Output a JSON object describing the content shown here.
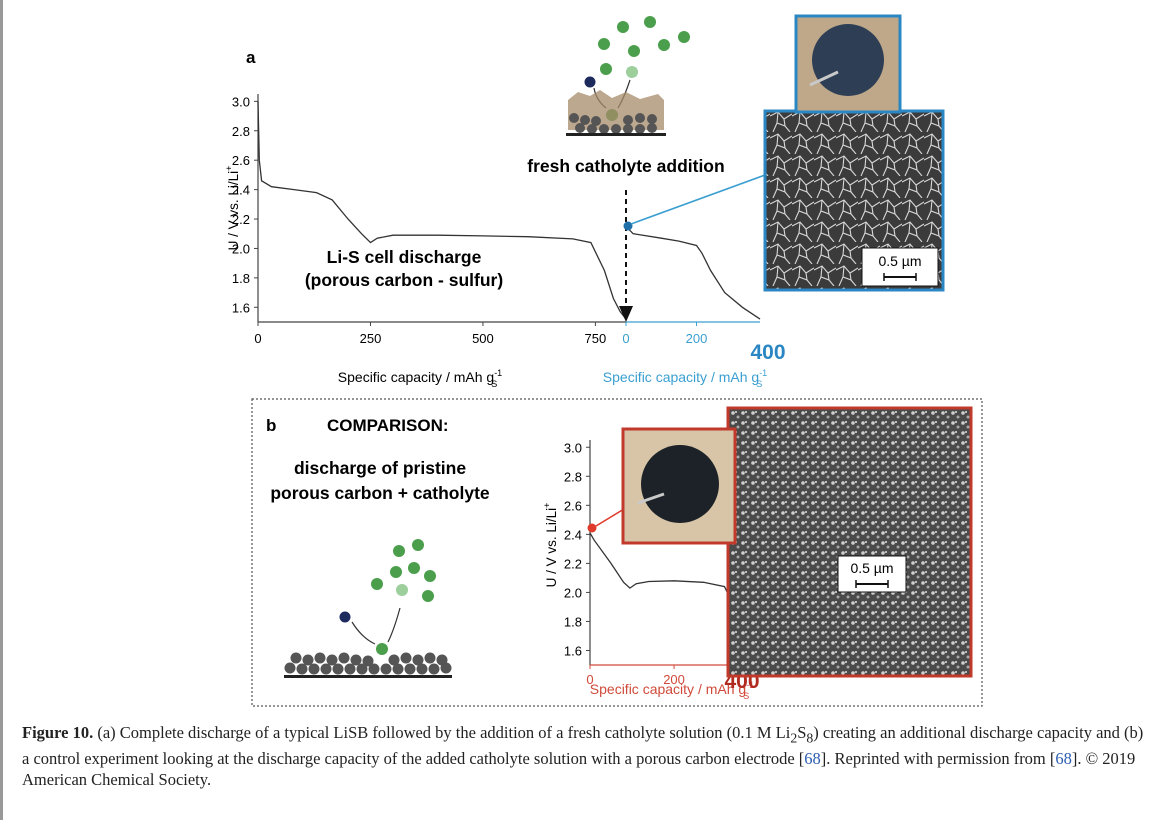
{
  "panel_a": {
    "label": "a",
    "ylabel": "U / V vs. Li/Li",
    "ylabel_sup": "+",
    "yticks": [
      "3.0",
      "2.8",
      "2.6",
      "2.4",
      "2.2",
      "2.0",
      "1.8",
      "1.6"
    ],
    "xticks_left": [
      "0",
      "250",
      "500",
      "750"
    ],
    "xticks_right": [
      "0",
      "200"
    ],
    "x_end_label": "400",
    "xlabel_left": "Specific capacity / mAh g",
    "xlabel_right": "Specific capacity / mAh g",
    "unit_sup": "-1",
    "unit_sub": "S",
    "annotation_line1": "Li-S cell discharge",
    "annotation_line2": "(porous carbon - sulfur)",
    "addition_label": "fresh catholyte addition",
    "scale_bar": "0.5 µm",
    "colors": {
      "right_axis": "#3a9fd0",
      "inset_border": "#2b87c3",
      "bold_end": "#2b87c3",
      "curve": "#333333"
    }
  },
  "panel_b": {
    "label": "b",
    "title": "COMPARISON:",
    "subtitle_line1": "discharge of pristine",
    "subtitle_line2": "porous carbon + catholyte",
    "ylabel": "U / V vs. Li/Li",
    "ylabel_sup": "+",
    "yticks": [
      "3.0",
      "2.8",
      "2.6",
      "2.4",
      "2.2",
      "2.0",
      "1.8",
      "1.6"
    ],
    "xticks": [
      "0",
      "200"
    ],
    "x_end_label": "400",
    "xlabel": "Specific capacity / mAh g",
    "unit_sup": "-1",
    "unit_sub": "S",
    "scale_bar": "0.5 µm",
    "colors": {
      "x_axis": "#d04a3a",
      "inset_border": "#c0392b",
      "bold_end": "#b02a1f",
      "marker": "#e03a2a"
    }
  },
  "caption": {
    "fig_label": "Figure 10.",
    "t1": " (a) Complete discharge of a typical LiSB followed by the addition of a fresh catholyte solution (0.1 M Li",
    "sub1": "2",
    "t2": "S",
    "sub2": "8",
    "t3": ") creating an additional discharge capacity and (b) a control experiment looking at the discharge capacity of the added catholyte solution with a porous carbon electrode [",
    "ref1": "68",
    "t4": "]. Reprinted with permission from [",
    "ref2": "68",
    "t5": "]. © 2019 American Chemical Society."
  },
  "chart_data": [
    {
      "type": "line",
      "panel": "a",
      "ylabel": "U / V vs. Li/Li+",
      "xlabel": "Specific capacity / mAh gS-1",
      "ylim": [
        1.5,
        3.05
      ],
      "xlim": [
        0,
        1195
      ],
      "series": [
        {
          "values": [
            [
              0,
              3.0
            ],
            [
              3,
              2.6
            ],
            [
              8,
              2.46
            ],
            [
              30,
              2.42
            ],
            [
              80,
              2.4
            ],
            [
              130,
              2.38
            ],
            [
              165,
              2.33
            ],
            [
              200,
              2.2
            ],
            [
              230,
              2.1
            ],
            [
              250,
              2.04
            ],
            [
              265,
              2.07
            ],
            [
              300,
              2.09
            ],
            [
              400,
              2.09
            ],
            [
              500,
              2.085
            ],
            [
              600,
              2.08
            ],
            [
              700,
              2.065
            ],
            [
              740,
              2.04
            ],
            [
              770,
              1.85
            ],
            [
              790,
              1.66
            ],
            [
              805,
              1.57
            ],
            [
              818,
              1.52
            ]
          ]
        },
        {
          "values": [
            [
              0,
              2.15
            ],
            [
              20,
              2.1
            ],
            [
              100,
              2.07
            ],
            [
              150,
              2.05
            ],
            [
              200,
              2.02
            ],
            [
              215,
              1.97
            ],
            [
              240,
              1.85
            ],
            [
              280,
              1.7
            ],
            [
              330,
              1.6
            ],
            [
              380,
              1.52
            ]
          ]
        }
      ]
    },
    {
      "type": "line",
      "panel": "b",
      "ylabel": "U / V vs. Li/Li+",
      "xlabel": "Specific capacity / mAh gS-1",
      "ylim": [
        1.5,
        3.05
      ],
      "xlim": [
        0,
        395
      ],
      "series": [
        {
          "values": [
            [
              0,
              2.41
            ],
            [
              10,
              2.36
            ],
            [
              50,
              2.2
            ],
            [
              80,
              2.07
            ],
            [
              95,
              2.03
            ],
            [
              110,
              2.06
            ],
            [
              140,
              2.075
            ],
            [
              200,
              2.08
            ],
            [
              270,
              2.07
            ],
            [
              320,
              2.04
            ],
            [
              335,
              1.95
            ],
            [
              350,
              1.82
            ],
            [
              365,
              1.68
            ],
            [
              380,
              1.58
            ],
            [
              395,
              1.51
            ]
          ]
        }
      ]
    }
  ]
}
